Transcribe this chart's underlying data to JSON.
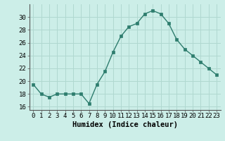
{
  "x": [
    0,
    1,
    2,
    3,
    4,
    5,
    6,
    7,
    8,
    9,
    10,
    11,
    12,
    13,
    14,
    15,
    16,
    17,
    18,
    19,
    20,
    21,
    22,
    23
  ],
  "y": [
    19.5,
    18.0,
    17.5,
    18.0,
    18.0,
    18.0,
    18.0,
    16.5,
    19.5,
    21.5,
    24.5,
    27.0,
    28.5,
    29.0,
    30.5,
    31.0,
    30.5,
    29.0,
    26.5,
    25.0,
    24.0,
    23.0,
    22.0,
    21.0
  ],
  "line_color": "#2e7d6e",
  "marker": "s",
  "marker_size": 2.2,
  "bg_color": "#cceee8",
  "grid_color": "#b0d8d0",
  "xlabel": "Humidex (Indice chaleur)",
  "ylim": [
    15.5,
    32
  ],
  "xlim": [
    -0.5,
    23.5
  ],
  "yticks": [
    16,
    18,
    20,
    22,
    24,
    26,
    28,
    30
  ],
  "xticks": [
    0,
    1,
    2,
    3,
    4,
    5,
    6,
    7,
    8,
    9,
    10,
    11,
    12,
    13,
    14,
    15,
    16,
    17,
    18,
    19,
    20,
    21,
    22,
    23
  ],
  "xlabel_fontsize": 7.5,
  "tick_fontsize": 6.5
}
